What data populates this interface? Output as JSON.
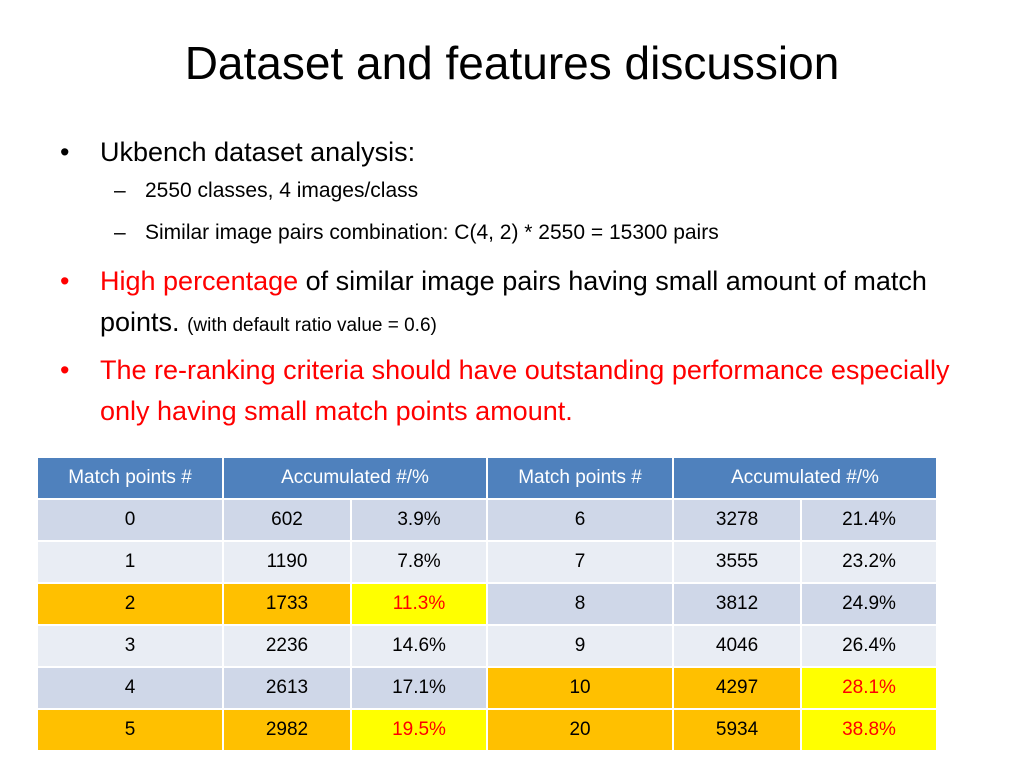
{
  "title": "Dataset and features discussion",
  "bullets": {
    "b1": "Ukbench dataset analysis:",
    "b1_sub1": "2550 classes, 4 images/class",
    "b1_sub2": "Similar image pairs combination: C(4, 2) * 2550 = 15300 pairs",
    "b2_red": "High percentage",
    "b2_rest": " of similar image pairs having small amount of match points.",
    "b2_small": "(with default ratio value = 0.6)",
    "b3": "The re-ranking criteria should have outstanding performance especially only having small match points amount.",
    "bullet_glyph": "•",
    "dash_glyph": "–"
  },
  "table": {
    "headers": [
      "Match points #",
      "Accumulated #/%",
      "Match points #",
      "Accumulated #/%"
    ],
    "rows": [
      [
        "0",
        "602",
        "3.9%",
        "6",
        "3278",
        "21.4%"
      ],
      [
        "1",
        "1190",
        "7.8%",
        "7",
        "3555",
        "23.2%"
      ],
      [
        "2",
        "1733",
        "11.3%",
        "8",
        "3812",
        "24.9%"
      ],
      [
        "3",
        "2236",
        "14.6%",
        "9",
        "4046",
        "26.4%"
      ],
      [
        "4",
        "2613",
        "17.1%",
        "10",
        "4297",
        "28.1%"
      ],
      [
        "5",
        "2982",
        "19.5%",
        "20",
        "5934",
        "38.8%"
      ]
    ]
  },
  "colors": {
    "header_bg": "#4f81bd",
    "row_dark": "#cfd7e8",
    "row_light": "#e9edf4",
    "highlight_orange": "#ffc000",
    "highlight_yellow": "#ffff00",
    "emphasis_red": "#ff0000"
  }
}
